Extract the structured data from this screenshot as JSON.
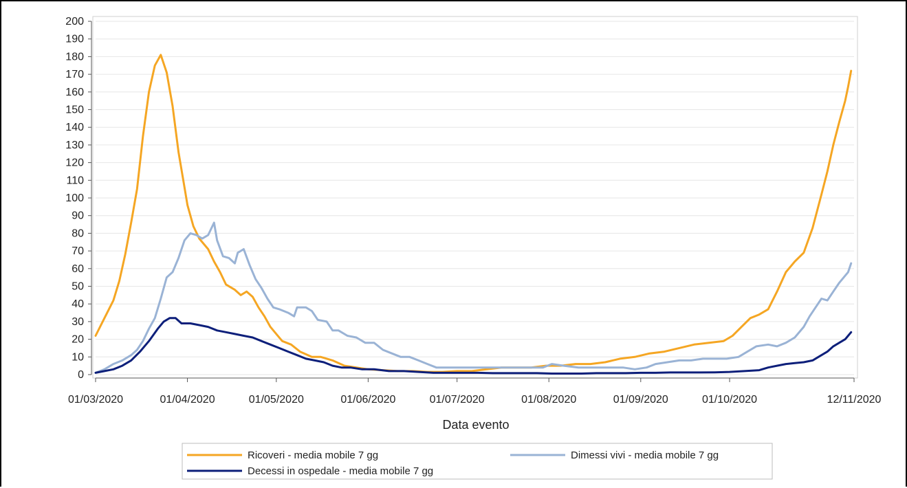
{
  "chart_data": {
    "type": "line",
    "xlabel": "Data evento",
    "ylabel": "",
    "ylim": [
      0,
      200
    ],
    "yticks": [
      0,
      10,
      20,
      30,
      40,
      50,
      60,
      70,
      80,
      90,
      100,
      110,
      120,
      130,
      140,
      150,
      160,
      170,
      180,
      190,
      200
    ],
    "xlim": [
      "2020-03-01",
      "2020-11-12"
    ],
    "xtick_labels": [
      "01/03/2020",
      "01/04/2020",
      "01/05/2020",
      "01/06/2020",
      "01/07/2020",
      "01/08/2020",
      "01/09/2020",
      "01/10/2020",
      "12/11/2020"
    ],
    "grid": "horizontal",
    "legend_position": "bottom",
    "series": [
      {
        "name": "Ricoveri - media mobile 7 gg",
        "color": "#f5a623",
        "points": [
          [
            "2020-03-01",
            22
          ],
          [
            "2020-03-04",
            32
          ],
          [
            "2020-03-07",
            42
          ],
          [
            "2020-03-09",
            53
          ],
          [
            "2020-03-11",
            68
          ],
          [
            "2020-03-13",
            86
          ],
          [
            "2020-03-15",
            105
          ],
          [
            "2020-03-17",
            135
          ],
          [
            "2020-03-19",
            160
          ],
          [
            "2020-03-21",
            175
          ],
          [
            "2020-03-23",
            181
          ],
          [
            "2020-03-25",
            171
          ],
          [
            "2020-03-27",
            152
          ],
          [
            "2020-03-29",
            126
          ],
          [
            "2020-03-31",
            106
          ],
          [
            "2020-04-01",
            96
          ],
          [
            "2020-04-03",
            84
          ],
          [
            "2020-04-05",
            77
          ],
          [
            "2020-04-08",
            71
          ],
          [
            "2020-04-10",
            64
          ],
          [
            "2020-04-12",
            58
          ],
          [
            "2020-04-14",
            51
          ],
          [
            "2020-04-17",
            48
          ],
          [
            "2020-04-19",
            45
          ],
          [
            "2020-04-21",
            47
          ],
          [
            "2020-04-23",
            44
          ],
          [
            "2020-04-25",
            38
          ],
          [
            "2020-04-27",
            33
          ],
          [
            "2020-04-29",
            27
          ],
          [
            "2020-05-01",
            23
          ],
          [
            "2020-05-03",
            19
          ],
          [
            "2020-05-06",
            17
          ],
          [
            "2020-05-09",
            13
          ],
          [
            "2020-05-13",
            10
          ],
          [
            "2020-05-16",
            10
          ],
          [
            "2020-05-20",
            8
          ],
          [
            "2020-05-24",
            5
          ],
          [
            "2020-05-28",
            4
          ],
          [
            "2020-06-01",
            3
          ],
          [
            "2020-06-06",
            2.5
          ],
          [
            "2020-06-11",
            2
          ],
          [
            "2020-06-16",
            2
          ],
          [
            "2020-06-21",
            1.5
          ],
          [
            "2020-06-26",
            1.5
          ],
          [
            "2020-07-01",
            2
          ],
          [
            "2020-07-06",
            2
          ],
          [
            "2020-07-11",
            3
          ],
          [
            "2020-07-16",
            4
          ],
          [
            "2020-07-21",
            4
          ],
          [
            "2020-07-26",
            4
          ],
          [
            "2020-07-31",
            5
          ],
          [
            "2020-08-05",
            5
          ],
          [
            "2020-08-10",
            6
          ],
          [
            "2020-08-15",
            6
          ],
          [
            "2020-08-20",
            7
          ],
          [
            "2020-08-25",
            9
          ],
          [
            "2020-08-30",
            10
          ],
          [
            "2020-09-04",
            12
          ],
          [
            "2020-09-09",
            13
          ],
          [
            "2020-09-14",
            15
          ],
          [
            "2020-09-19",
            17
          ],
          [
            "2020-09-24",
            18
          ],
          [
            "2020-09-29",
            19
          ],
          [
            "2020-10-02",
            22
          ],
          [
            "2020-10-05",
            27
          ],
          [
            "2020-10-08",
            32
          ],
          [
            "2020-10-11",
            34
          ],
          [
            "2020-10-14",
            37
          ],
          [
            "2020-10-17",
            47
          ],
          [
            "2020-10-20",
            58
          ],
          [
            "2020-10-23",
            64
          ],
          [
            "2020-10-26",
            69
          ],
          [
            "2020-10-29",
            83
          ],
          [
            "2020-11-01",
            102
          ],
          [
            "2020-11-03",
            115
          ],
          [
            "2020-11-05",
            130
          ],
          [
            "2020-11-07",
            143
          ],
          [
            "2020-11-09",
            155
          ],
          [
            "2020-11-10",
            163
          ],
          [
            "2020-11-11",
            172
          ]
        ]
      },
      {
        "name": "Dimessi vivi - media mobile 7 gg",
        "color": "#9ab3d5",
        "points": [
          [
            "2020-03-01",
            1
          ],
          [
            "2020-03-04",
            3
          ],
          [
            "2020-03-07",
            6
          ],
          [
            "2020-03-10",
            8
          ],
          [
            "2020-03-13",
            11
          ],
          [
            "2020-03-15",
            14
          ],
          [
            "2020-03-17",
            19
          ],
          [
            "2020-03-19",
            26
          ],
          [
            "2020-03-21",
            32
          ],
          [
            "2020-03-23",
            43
          ],
          [
            "2020-03-25",
            55
          ],
          [
            "2020-03-27",
            58
          ],
          [
            "2020-03-29",
            66
          ],
          [
            "2020-03-31",
            76
          ],
          [
            "2020-04-02",
            80
          ],
          [
            "2020-04-04",
            79
          ],
          [
            "2020-04-06",
            77
          ],
          [
            "2020-04-08",
            79
          ],
          [
            "2020-04-10",
            86
          ],
          [
            "2020-04-11",
            76
          ],
          [
            "2020-04-13",
            67
          ],
          [
            "2020-04-15",
            66
          ],
          [
            "2020-04-17",
            63
          ],
          [
            "2020-04-18",
            69
          ],
          [
            "2020-04-20",
            71
          ],
          [
            "2020-04-22",
            62
          ],
          [
            "2020-04-24",
            54
          ],
          [
            "2020-04-26",
            49
          ],
          [
            "2020-04-28",
            43
          ],
          [
            "2020-04-30",
            38
          ],
          [
            "2020-05-02",
            37
          ],
          [
            "2020-05-05",
            35
          ],
          [
            "2020-05-07",
            33
          ],
          [
            "2020-05-08",
            38
          ],
          [
            "2020-05-11",
            38
          ],
          [
            "2020-05-13",
            36
          ],
          [
            "2020-05-15",
            31
          ],
          [
            "2020-05-18",
            30
          ],
          [
            "2020-05-20",
            25
          ],
          [
            "2020-05-22",
            25
          ],
          [
            "2020-05-25",
            22
          ],
          [
            "2020-05-28",
            21
          ],
          [
            "2020-05-31",
            18
          ],
          [
            "2020-06-03",
            18
          ],
          [
            "2020-06-06",
            14
          ],
          [
            "2020-06-09",
            12
          ],
          [
            "2020-06-12",
            10
          ],
          [
            "2020-06-15",
            10
          ],
          [
            "2020-06-18",
            8
          ],
          [
            "2020-06-21",
            6
          ],
          [
            "2020-06-24",
            4
          ],
          [
            "2020-06-28",
            4
          ],
          [
            "2020-07-02",
            4
          ],
          [
            "2020-07-06",
            4
          ],
          [
            "2020-07-10",
            4
          ],
          [
            "2020-07-15",
            4
          ],
          [
            "2020-07-20",
            4
          ],
          [
            "2020-07-25",
            4
          ],
          [
            "2020-07-30",
            4
          ],
          [
            "2020-08-02",
            6
          ],
          [
            "2020-08-06",
            5
          ],
          [
            "2020-08-11",
            4
          ],
          [
            "2020-08-16",
            4
          ],
          [
            "2020-08-21",
            4
          ],
          [
            "2020-08-26",
            4
          ],
          [
            "2020-08-30",
            3
          ],
          [
            "2020-09-03",
            4
          ],
          [
            "2020-09-06",
            6
          ],
          [
            "2020-09-10",
            7
          ],
          [
            "2020-09-14",
            8
          ],
          [
            "2020-09-18",
            8
          ],
          [
            "2020-09-22",
            9
          ],
          [
            "2020-09-26",
            9
          ],
          [
            "2020-09-30",
            9
          ],
          [
            "2020-10-04",
            10
          ],
          [
            "2020-10-07",
            13
          ],
          [
            "2020-10-10",
            16
          ],
          [
            "2020-10-14",
            17
          ],
          [
            "2020-10-17",
            16
          ],
          [
            "2020-10-20",
            18
          ],
          [
            "2020-10-23",
            21
          ],
          [
            "2020-10-26",
            27
          ],
          [
            "2020-10-28",
            33
          ],
          [
            "2020-10-30",
            38
          ],
          [
            "2020-11-01",
            43
          ],
          [
            "2020-11-03",
            42
          ],
          [
            "2020-11-05",
            47
          ],
          [
            "2020-11-07",
            52
          ],
          [
            "2020-11-09",
            56
          ],
          [
            "2020-11-10",
            58
          ],
          [
            "2020-11-11",
            63
          ]
        ]
      },
      {
        "name": "Decessi in ospedale - media mobile 7 gg",
        "color": "#0d1f7a",
        "points": [
          [
            "2020-03-01",
            1
          ],
          [
            "2020-03-04",
            2
          ],
          [
            "2020-03-07",
            3
          ],
          [
            "2020-03-10",
            5
          ],
          [
            "2020-03-13",
            8
          ],
          [
            "2020-03-16",
            13
          ],
          [
            "2020-03-19",
            19
          ],
          [
            "2020-03-22",
            26
          ],
          [
            "2020-03-24",
            30
          ],
          [
            "2020-03-26",
            32
          ],
          [
            "2020-03-28",
            32
          ],
          [
            "2020-03-30",
            29
          ],
          [
            "2020-04-02",
            29
          ],
          [
            "2020-04-05",
            28
          ],
          [
            "2020-04-08",
            27
          ],
          [
            "2020-04-11",
            25
          ],
          [
            "2020-04-14",
            24
          ],
          [
            "2020-04-17",
            23
          ],
          [
            "2020-04-20",
            22
          ],
          [
            "2020-04-23",
            21
          ],
          [
            "2020-04-26",
            19
          ],
          [
            "2020-04-29",
            17
          ],
          [
            "2020-05-02",
            15
          ],
          [
            "2020-05-05",
            13
          ],
          [
            "2020-05-08",
            11
          ],
          [
            "2020-05-11",
            9
          ],
          [
            "2020-05-14",
            8
          ],
          [
            "2020-05-17",
            7
          ],
          [
            "2020-05-20",
            5
          ],
          [
            "2020-05-23",
            4
          ],
          [
            "2020-05-26",
            4
          ],
          [
            "2020-05-30",
            3
          ],
          [
            "2020-06-03",
            3
          ],
          [
            "2020-06-08",
            2
          ],
          [
            "2020-06-13",
            2
          ],
          [
            "2020-06-18",
            1.5
          ],
          [
            "2020-06-23",
            1
          ],
          [
            "2020-06-28",
            1
          ],
          [
            "2020-07-03",
            1
          ],
          [
            "2020-07-08",
            1
          ],
          [
            "2020-07-13",
            0.8
          ],
          [
            "2020-07-18",
            0.8
          ],
          [
            "2020-07-23",
            0.8
          ],
          [
            "2020-07-28",
            0.8
          ],
          [
            "2020-08-02",
            0.6
          ],
          [
            "2020-08-07",
            0.6
          ],
          [
            "2020-08-12",
            0.6
          ],
          [
            "2020-08-17",
            0.8
          ],
          [
            "2020-08-22",
            0.8
          ],
          [
            "2020-08-27",
            0.8
          ],
          [
            "2020-09-01",
            1
          ],
          [
            "2020-09-06",
            1
          ],
          [
            "2020-09-11",
            1.2
          ],
          [
            "2020-09-16",
            1.2
          ],
          [
            "2020-09-21",
            1.2
          ],
          [
            "2020-09-26",
            1.3
          ],
          [
            "2020-10-01",
            1.5
          ],
          [
            "2020-10-06",
            2
          ],
          [
            "2020-10-11",
            2.5
          ],
          [
            "2020-10-14",
            4
          ],
          [
            "2020-10-17",
            5
          ],
          [
            "2020-10-20",
            6
          ],
          [
            "2020-10-23",
            6.5
          ],
          [
            "2020-10-26",
            7
          ],
          [
            "2020-10-29",
            8
          ],
          [
            "2020-11-01",
            11
          ],
          [
            "2020-11-03",
            13
          ],
          [
            "2020-11-05",
            16
          ],
          [
            "2020-11-07",
            18
          ],
          [
            "2020-11-09",
            20
          ],
          [
            "2020-11-10",
            22
          ],
          [
            "2020-11-11",
            24
          ]
        ]
      }
    ]
  }
}
